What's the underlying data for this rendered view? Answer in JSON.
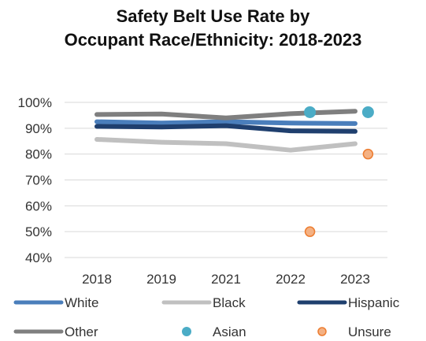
{
  "chart_data": {
    "type": "line",
    "title_lines": [
      "Safety Belt Use Rate by",
      "Occupant Race/Ethnicity: 2018-2023"
    ],
    "categories": [
      "2018",
      "2019",
      "2021",
      "2022",
      "2023"
    ],
    "y_ticks": [
      "100%",
      "90%",
      "80%",
      "70%",
      "60%",
      "50%",
      "40%"
    ],
    "ylim": [
      40,
      100
    ],
    "grid": true,
    "legend_position": "bottom",
    "series": [
      {
        "name": "White",
        "kind": "line",
        "color": "#4a7ebb",
        "values": [
          92.5,
          92.0,
          92.5,
          92.0,
          91.8
        ]
      },
      {
        "name": "Black",
        "kind": "line",
        "color": "#c0c0c0",
        "values": [
          85.7,
          84.6,
          84.0,
          81.5,
          84.0
        ]
      },
      {
        "name": "Hispanic",
        "kind": "line",
        "color": "#1f3f6e",
        "values": [
          90.7,
          90.5,
          91.0,
          89.0,
          88.8
        ]
      },
      {
        "name": "Other",
        "kind": "line",
        "color": "#7f7f7f",
        "values": [
          95.3,
          95.5,
          94.0,
          95.6,
          96.6
        ]
      },
      {
        "name": "Asian",
        "kind": "marker",
        "color": "#4bacc6",
        "points": [
          {
            "x": 3.3,
            "y": 96.2
          },
          {
            "x": 4.2,
            "y": 96.2
          }
        ]
      },
      {
        "name": "Unsure",
        "kind": "marker",
        "color": "#f4b183",
        "stroke": "#ed7d31",
        "points": [
          {
            "x": 3.3,
            "y": 50.0
          },
          {
            "x": 4.2,
            "y": 80.0
          }
        ]
      }
    ]
  }
}
